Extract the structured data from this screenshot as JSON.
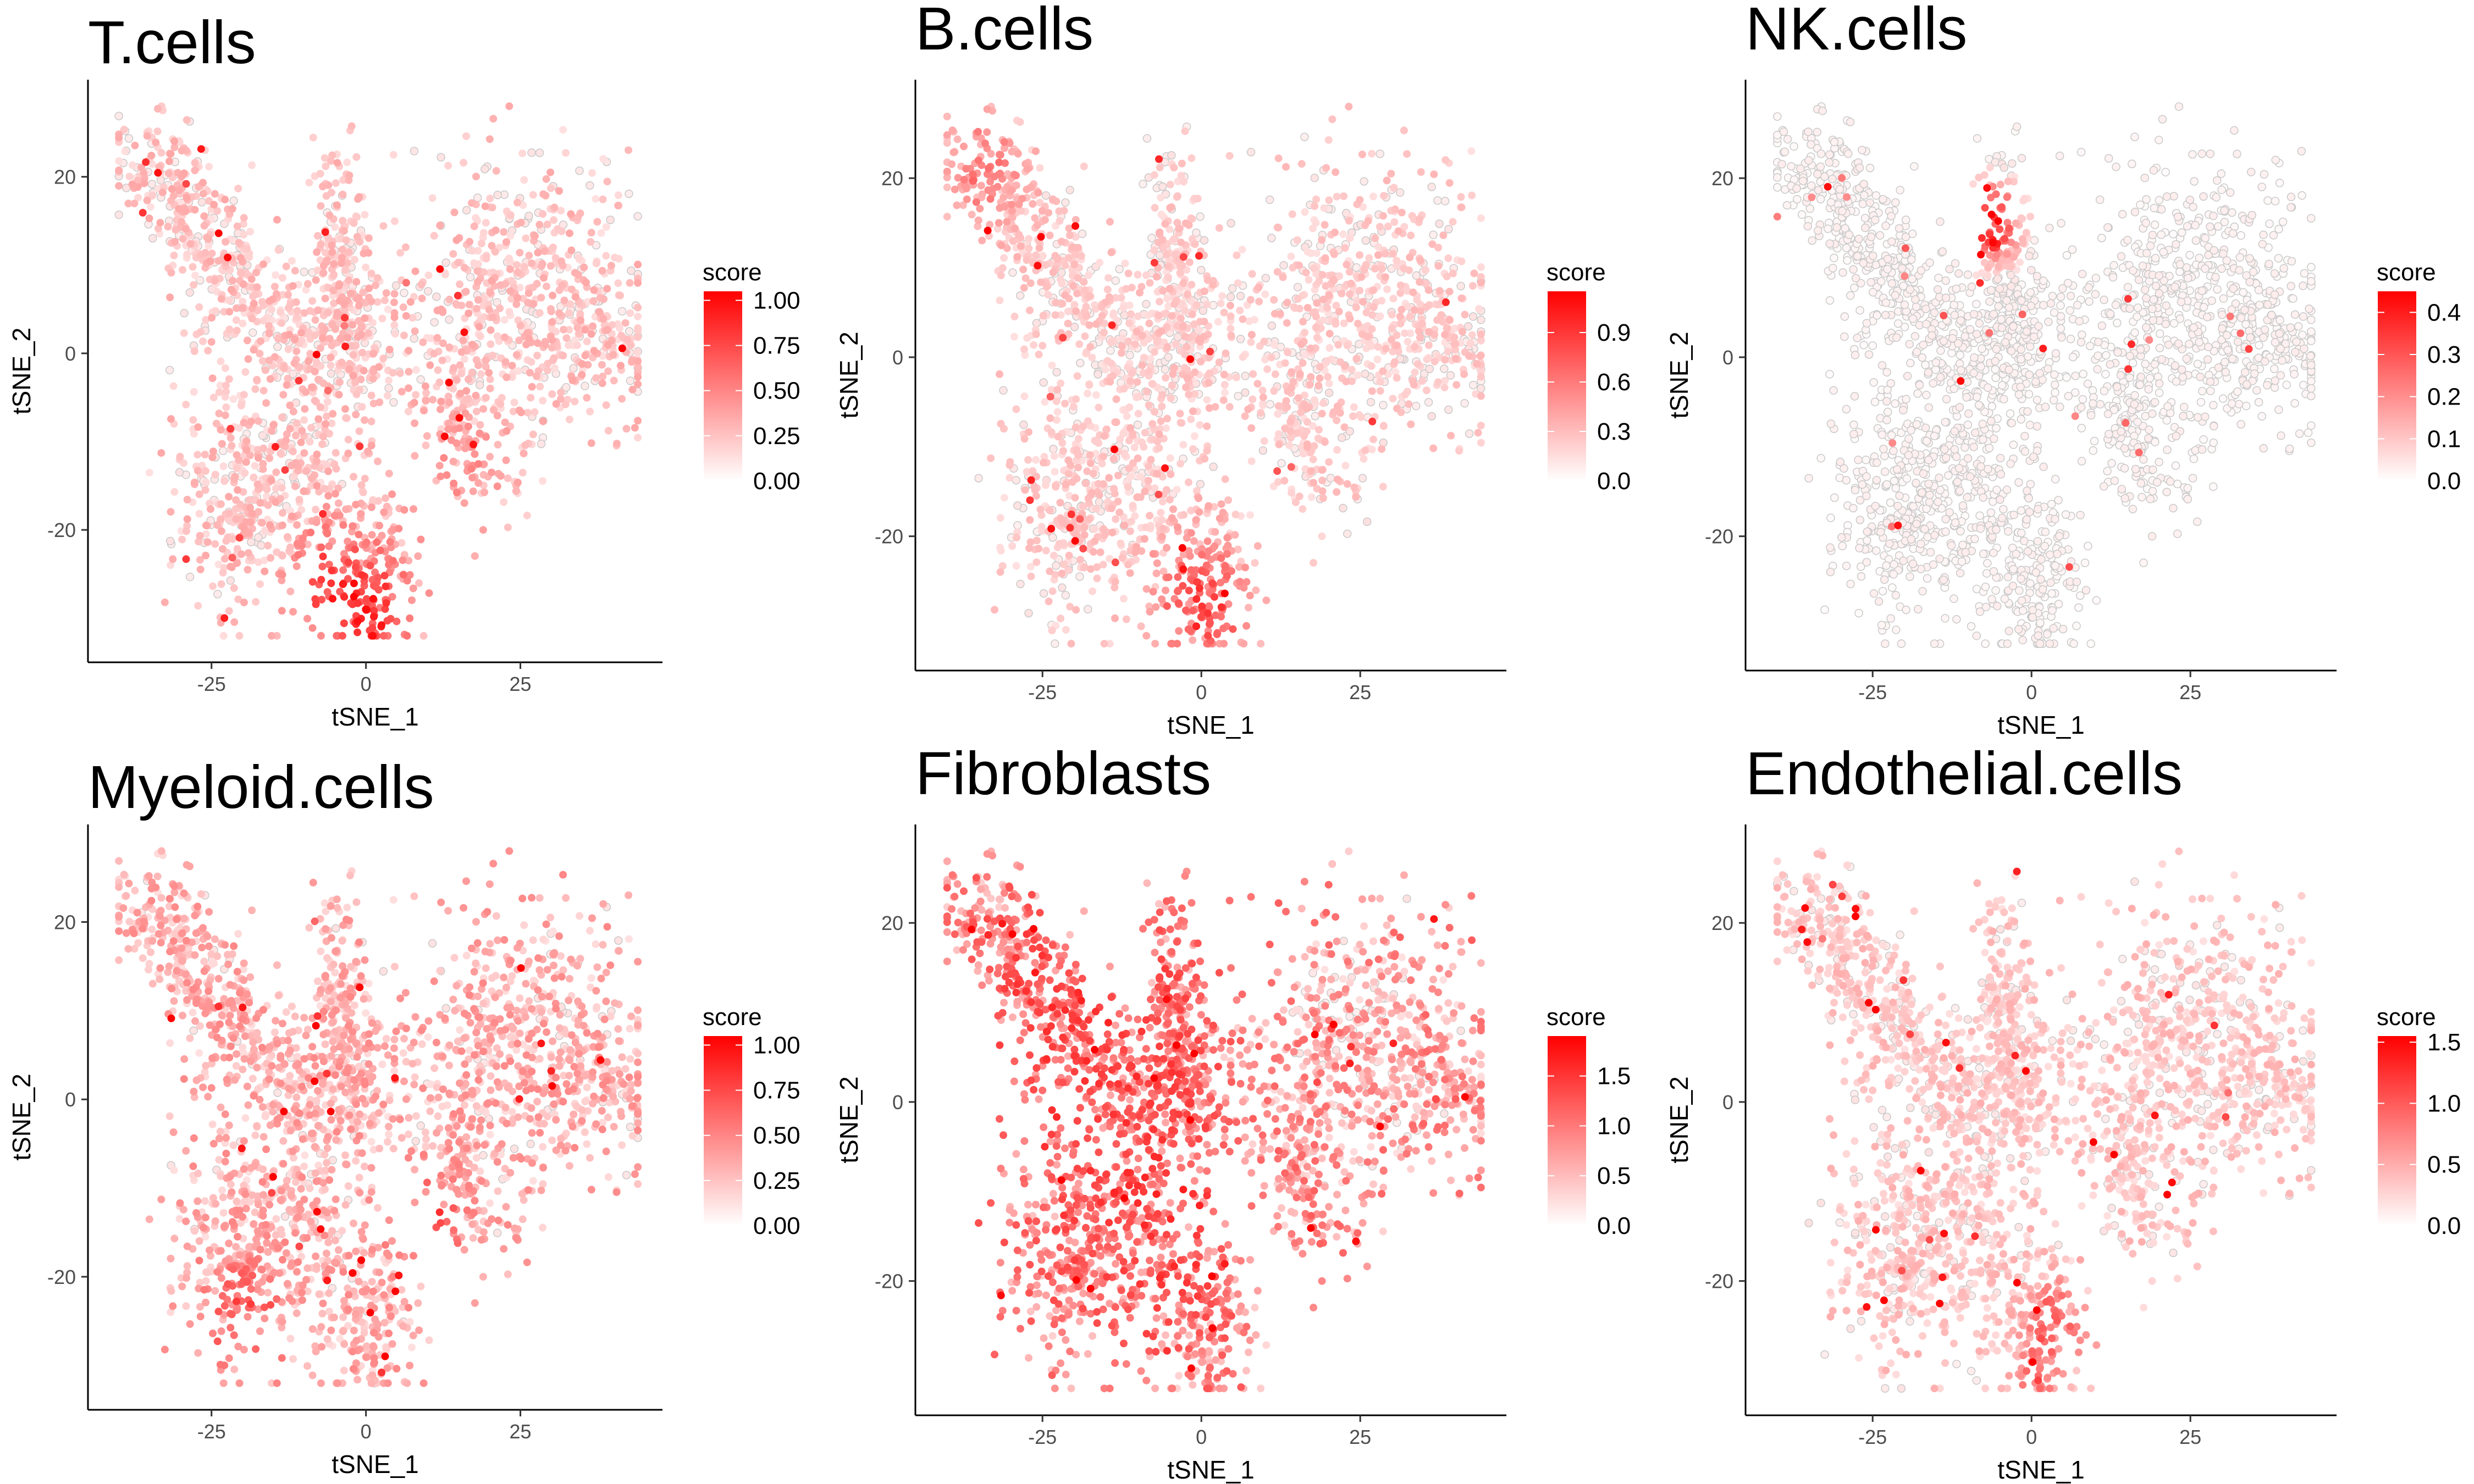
{
  "chart_data": [
    {
      "type": "scatter",
      "title": "T.cells",
      "xlabel": "tSNE_1",
      "ylabel": "tSNE_2",
      "xlim": [
        -45,
        48
      ],
      "ylim": [
        -35,
        31
      ],
      "xticks": [
        "-25",
        "0",
        "25"
      ],
      "xtick_values": [
        -25,
        0,
        25
      ],
      "yticks": [
        "-20",
        "0",
        "20"
      ],
      "ytick_values": [
        -20,
        0,
        20
      ],
      "legend": {
        "title": "score",
        "placement": "right",
        "min": 0,
        "max": 1.05,
        "labels": [
          "1.00",
          "0.75",
          "0.50",
          "0.25",
          "0.00"
        ],
        "label_values": [
          1.0,
          0.75,
          0.5,
          0.25,
          0.0
        ]
      },
      "low_color": "#ffffff",
      "high_color": "#ff0000",
      "score_level": 0.22,
      "hotspots": [
        [
          0,
          -30,
          8,
          0.55
        ],
        [
          -7,
          -25,
          6,
          0.3
        ],
        [
          15,
          -15,
          8,
          0.2
        ]
      ],
      "seed": 11
    },
    {
      "type": "scatter",
      "title": "B.cells",
      "xlabel": "tSNE_1",
      "ylabel": "tSNE_2",
      "xlim": [
        -45,
        48
      ],
      "ylim": [
        -35,
        31
      ],
      "xticks": [
        "-25",
        "0",
        "25"
      ],
      "xtick_values": [
        -25,
        0,
        25
      ],
      "yticks": [
        "-20",
        "0",
        "20"
      ],
      "ytick_values": [
        -20,
        0,
        20
      ],
      "legend": {
        "title": "score",
        "placement": "right",
        "min": 0,
        "max": 1.15,
        "labels": [
          "0.9",
          "0.6",
          "0.3",
          "0.0"
        ],
        "label_values": [
          0.9,
          0.6,
          0.3,
          0.0
        ]
      },
      "low_color": "#ffffff",
      "high_color": "#ff0000",
      "score_level": 0.2,
      "hotspots": [
        [
          0,
          -28,
          8,
          0.55
        ],
        [
          -35,
          22,
          8,
          0.3
        ]
      ],
      "seed": 23
    },
    {
      "type": "scatter",
      "title": "NK.cells",
      "xlabel": "tSNE_1",
      "ylabel": "tSNE_2",
      "xlim": [
        -45,
        48
      ],
      "ylim": [
        -35,
        31
      ],
      "xticks": [
        "-25",
        "0",
        "25"
      ],
      "xtick_values": [
        -25,
        0,
        25
      ],
      "yticks": [
        "-20",
        "0",
        "20"
      ],
      "ytick_values": [
        -20,
        0,
        20
      ],
      "legend": {
        "title": "score",
        "placement": "right",
        "min": 0,
        "max": 0.45,
        "labels": [
          "0.4",
          "0.3",
          "0.2",
          "0.1",
          "0.0"
        ],
        "label_values": [
          0.4,
          0.3,
          0.2,
          0.1,
          0.0
        ]
      },
      "low_color": "#ffffff",
      "high_color": "#ff0000",
      "score_level": 0.02,
      "hotspots": [
        [
          -6,
          15,
          4,
          0.4
        ]
      ],
      "seed": 37
    },
    {
      "type": "scatter",
      "title": "Myeloid.cells",
      "xlabel": "tSNE_1",
      "ylabel": "tSNE_2",
      "xlim": [
        -45,
        48
      ],
      "ylim": [
        -35,
        31
      ],
      "xticks": [
        "-25",
        "0",
        "25"
      ],
      "xtick_values": [
        -25,
        0,
        25
      ],
      "yticks": [
        "-20",
        "0",
        "20"
      ],
      "ytick_values": [
        -20,
        0,
        20
      ],
      "legend": {
        "title": "score",
        "placement": "right",
        "min": 0,
        "max": 1.05,
        "labels": [
          "1.00",
          "0.75",
          "0.50",
          "0.25",
          "0.00"
        ],
        "label_values": [
          1.0,
          0.75,
          0.5,
          0.25,
          0.0
        ]
      },
      "low_color": "#ffffff",
      "high_color": "#ff0000",
      "score_level": 0.3,
      "hotspots": [
        [
          10,
          -14,
          5,
          0.5
        ],
        [
          -20,
          -25,
          7,
          0.3
        ]
      ],
      "seed": 41
    },
    {
      "type": "scatter",
      "title": "Fibroblasts",
      "xlabel": "tSNE_1",
      "ylabel": "tSNE_2",
      "xlim": [
        -45,
        48
      ],
      "ylim": [
        -35,
        31
      ],
      "xticks": [
        "-25",
        "0",
        "25"
      ],
      "xtick_values": [
        -25,
        0,
        25
      ],
      "yticks": [
        "-20",
        "0",
        "20"
      ],
      "ytick_values": [
        -20,
        0,
        20
      ],
      "legend": {
        "title": "score",
        "placement": "right",
        "min": 0,
        "max": 1.9,
        "labels": [
          "1.5",
          "1.0",
          "0.5",
          "0.0"
        ],
        "label_values": [
          1.5,
          1.0,
          0.5,
          0.0
        ]
      },
      "low_color": "#ffffff",
      "high_color": "#ff0000",
      "score_level": 0.75,
      "hotspots": [
        [
          -20,
          5,
          22,
          0.35
        ],
        [
          -5,
          -15,
          12,
          0.3
        ],
        [
          25,
          5,
          15,
          -0.2
        ]
      ],
      "seed": 53
    },
    {
      "type": "scatter",
      "title": "Endothelial.cells",
      "xlabel": "tSNE_1",
      "ylabel": "tSNE_2",
      "xlim": [
        -45,
        48
      ],
      "ylim": [
        -35,
        31
      ],
      "xticks": [
        "-25",
        "0",
        "25"
      ],
      "xtick_values": [
        -25,
        0,
        25
      ],
      "yticks": [
        "-20",
        "0",
        "20"
      ],
      "ytick_values": [
        -20,
        0,
        20
      ],
      "legend": {
        "title": "score",
        "placement": "right",
        "min": 0,
        "max": 1.55,
        "labels": [
          "1.5",
          "1.0",
          "0.5",
          "0.0"
        ],
        "label_values": [
          1.5,
          1.0,
          0.5,
          0.0
        ]
      },
      "low_color": "#ffffff",
      "high_color": "#ff0000",
      "score_level": 0.3,
      "hotspots": [
        [
          4,
          -25,
          5,
          0.6
        ],
        [
          0,
          -31,
          3,
          0.5
        ]
      ],
      "seed": 67
    }
  ]
}
